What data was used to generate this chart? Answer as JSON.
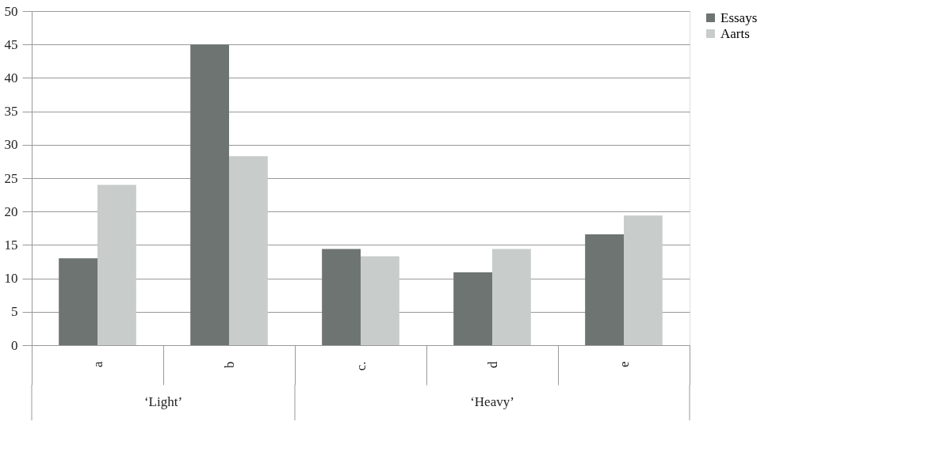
{
  "chart_data": {
    "type": "bar",
    "categories": [
      "a",
      "b",
      "c.",
      "d",
      "e"
    ],
    "series": [
      {
        "name": "Essays",
        "color": "#6e7471",
        "values": [
          13,
          45,
          14.4,
          10.9,
          16.6
        ]
      },
      {
        "name": "Aarts",
        "color": "#c8cccb",
        "values": [
          24,
          28.3,
          13.3,
          14.4,
          19.4
        ]
      }
    ],
    "ylim": [
      0,
      50
    ],
    "yticks": [
      0,
      5,
      10,
      15,
      20,
      25,
      30,
      35,
      40,
      45,
      50
    ],
    "grid": "y",
    "legend": "right",
    "annotations": [
      "‘Light’",
      "‘Heavy’"
    ]
  }
}
